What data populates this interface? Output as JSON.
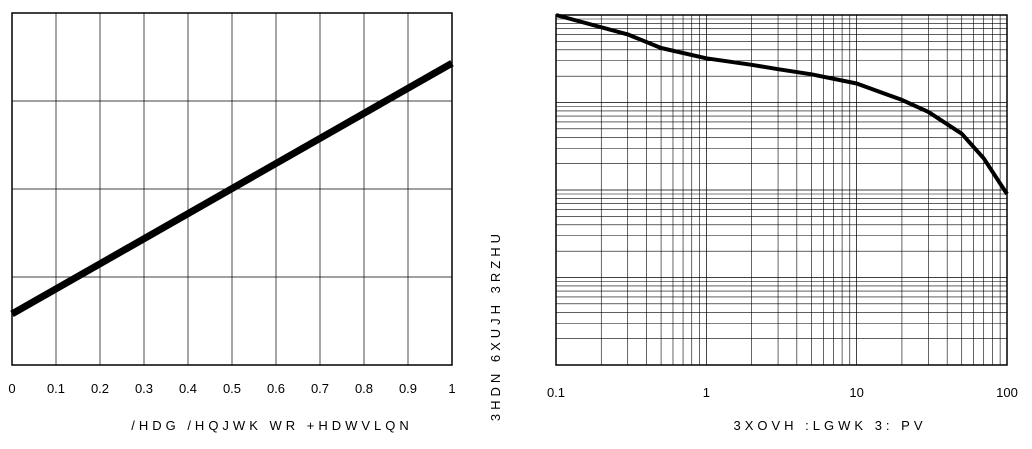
{
  "chart_data": [
    {
      "type": "line",
      "title": "",
      "xlabel": "/HDG /HQJWK WR +HDWVLQN",
      "ylabel": "",
      "x_ticks": [
        "0",
        "0.1",
        "0.2",
        "0.3",
        "0.4",
        "0.5",
        "0.6",
        "0.7",
        "0.8",
        "0.9",
        "1"
      ],
      "xlim": [
        0,
        1
      ],
      "ylim": [
        0,
        4
      ],
      "grid": true,
      "series": [
        {
          "x": [
            0,
            1
          ],
          "y": [
            0.58,
            3.43
          ]
        }
      ]
    },
    {
      "type": "line",
      "title": "",
      "xlabel": "3XOVH :LGWK 3:    PV",
      "ylabel": "3HDN 6XUJH 3RZHU",
      "x_scale": "log",
      "y_scale": "log",
      "x_ticks": [
        "0.1",
        "1",
        "10",
        "100"
      ],
      "xlim": [
        0.1,
        100
      ],
      "ylim": [
        0.01,
        100
      ],
      "grid": true,
      "series": [
        {
          "x": [
            0.1,
            0.3,
            0.5,
            1,
            2,
            3,
            5,
            10,
            20,
            30,
            50,
            70,
            100
          ],
          "y": [
            100,
            60,
            42,
            32,
            27,
            24,
            21,
            16.5,
            10.7,
            7.8,
            4.4,
            2.3,
            0.9
          ]
        }
      ]
    }
  ]
}
